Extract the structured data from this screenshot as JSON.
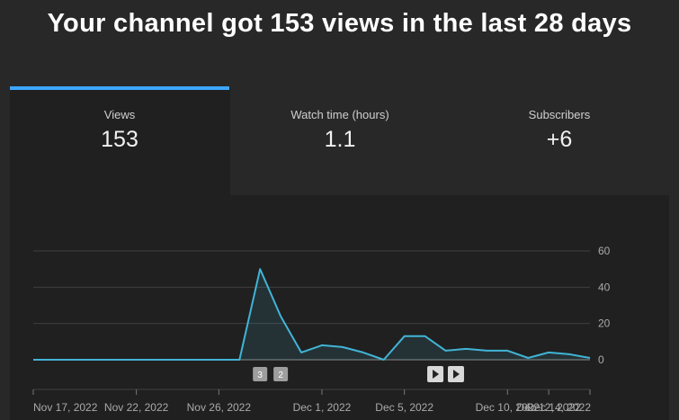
{
  "headline": "Your channel got 153 views in the last 28 days",
  "tabs": [
    {
      "label": "Views",
      "value": "153",
      "active": true
    },
    {
      "label": "Watch time (hours)",
      "value": "1.1",
      "active": false
    },
    {
      "label": "Subscribers",
      "value": "+6",
      "active": false
    }
  ],
  "colors": {
    "accent": "#3ea6ff",
    "line": "#41b4d6"
  },
  "chart_data": {
    "type": "area",
    "title": "",
    "xlabel": "",
    "ylabel": "",
    "ylim": [
      0,
      60
    ],
    "yticks": [
      0,
      20,
      40,
      60
    ],
    "x": [
      "Nov 17",
      "Nov 18",
      "Nov 19",
      "Nov 20",
      "Nov 21",
      "Nov 22",
      "Nov 23",
      "Nov 24",
      "Nov 25",
      "Nov 26",
      "Nov 27",
      "Nov 28",
      "Nov 29",
      "Nov 30",
      "Dec 1",
      "Dec 2",
      "Dec 3",
      "Dec 4",
      "Dec 5",
      "Dec 6",
      "Dec 7",
      "Dec 8",
      "Dec 9",
      "Dec 10",
      "Dec 11",
      "Dec 12",
      "Dec 13",
      "Dec 14"
    ],
    "series": [
      {
        "values": [
          0,
          0,
          0,
          0,
          0,
          0,
          0,
          0,
          0,
          0,
          0,
          50,
          24,
          4,
          8,
          7,
          4,
          0,
          13,
          13,
          5,
          6,
          5,
          5,
          1,
          4,
          3,
          1
        ]
      }
    ],
    "x_tick_labels": [
      {
        "index": 0,
        "label": "Nov 17, 2022"
      },
      {
        "index": 5,
        "label": "Nov 22, 2022"
      },
      {
        "index": 9,
        "label": "Nov 26, 2022"
      },
      {
        "index": 14,
        "label": "Dec 1, 2022"
      },
      {
        "index": 18,
        "label": "Dec 5, 2022"
      },
      {
        "index": 23,
        "label": "Dec 10, 2022"
      },
      {
        "index": 27,
        "label": "Dec 14, 2022"
      }
    ],
    "x_tick_labels_extra": [
      {
        "index": 25,
        "label": "Dec 12, 2022"
      }
    ],
    "markers": [
      {
        "index": 11,
        "label": "3"
      },
      {
        "index": 12,
        "label": "2"
      }
    ],
    "video_markers": [
      {
        "index": 19.5,
        "icon": "play-icon"
      },
      {
        "index": 20.5,
        "icon": "play-icon"
      }
    ],
    "grid": true
  }
}
